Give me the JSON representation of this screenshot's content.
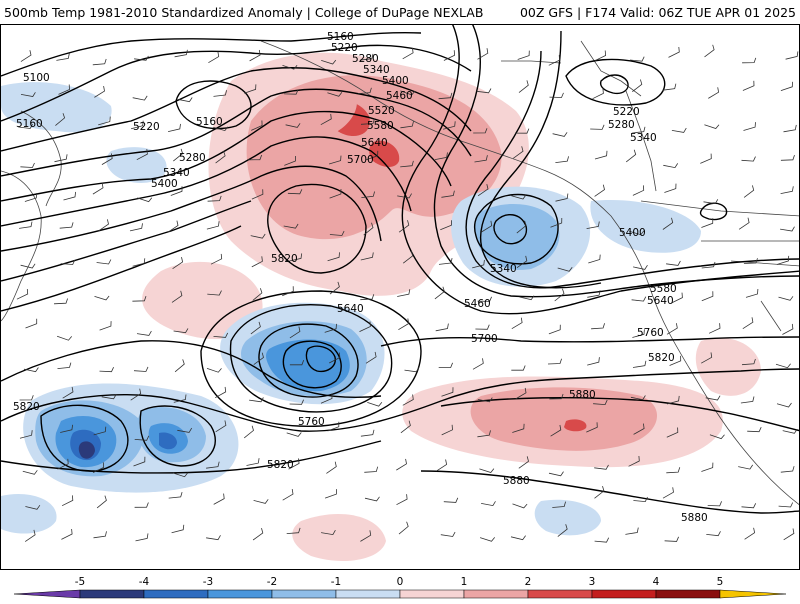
{
  "header": {
    "title_left": "500mb Temp 1981-2010 Standardized Anomaly | College of DuPage NEXLAB",
    "title_right": "00Z GFS | F174 Valid: 06Z TUE APR 01 2025"
  },
  "colors": {
    "neg5": "#2b3a7a",
    "neg4": "#2e6cc0",
    "neg3": "#4a96dc",
    "neg2": "#8fbde8",
    "neg1": "#c9ddf2",
    "pos1": "#f6d4d4",
    "pos2": "#eba5a5",
    "pos3": "#d84a4a",
    "pos4": "#c41e1e",
    "pos5": "#8a0f0f",
    "end_low": "#6a3aa8",
    "end_high": "#f5c400",
    "coast": "#444444",
    "contour": "#000000"
  },
  "contour_labels": [
    {
      "id": "5160a",
      "text": "5160"
    },
    {
      "id": "5220a",
      "text": "5220"
    },
    {
      "id": "5280a",
      "text": "5280"
    },
    {
      "id": "5340a",
      "text": "5340"
    },
    {
      "id": "5400a",
      "text": "5400"
    },
    {
      "id": "5460a",
      "text": "5460"
    },
    {
      "id": "5520a",
      "text": "5520"
    },
    {
      "id": "5580a",
      "text": "5580"
    },
    {
      "id": "5640a",
      "text": "5640"
    },
    {
      "id": "5700a",
      "text": "5700"
    },
    {
      "id": "5100a",
      "text": "5100"
    },
    {
      "id": "5160b",
      "text": "5160"
    },
    {
      "id": "5220b",
      "text": "5220"
    },
    {
      "id": "5160c",
      "text": "5160"
    },
    {
      "id": "5280b",
      "text": "5280"
    },
    {
      "id": "5340b",
      "text": "5340"
    },
    {
      "id": "5400b",
      "text": "5400"
    },
    {
      "id": "5820a",
      "text": "5820"
    },
    {
      "id": "5640b",
      "text": "5640"
    },
    {
      "id": "5760a",
      "text": "5760"
    },
    {
      "id": "5820b",
      "text": "5820"
    },
    {
      "id": "5820c",
      "text": "5820"
    },
    {
      "id": "5700b",
      "text": "5700"
    },
    {
      "id": "5460b",
      "text": "5460"
    },
    {
      "id": "5340c",
      "text": "5340"
    },
    {
      "id": "5400c",
      "text": "5400"
    },
    {
      "id": "5220c",
      "text": "5220"
    },
    {
      "id": "5280c",
      "text": "5280"
    },
    {
      "id": "5340d",
      "text": "5340"
    },
    {
      "id": "5580b",
      "text": "5580"
    },
    {
      "id": "5640c",
      "text": "5640"
    },
    {
      "id": "5760b",
      "text": "5760"
    },
    {
      "id": "5820d",
      "text": "5820"
    },
    {
      "id": "5880a",
      "text": "5880"
    },
    {
      "id": "5880b",
      "text": "5880"
    },
    {
      "id": "5880c",
      "text": "5880"
    }
  ],
  "colorbar": {
    "ticks": [
      "-5",
      "-4",
      "-3",
      "-2",
      "-1",
      "0",
      "1",
      "2",
      "3",
      "4",
      "5"
    ]
  }
}
